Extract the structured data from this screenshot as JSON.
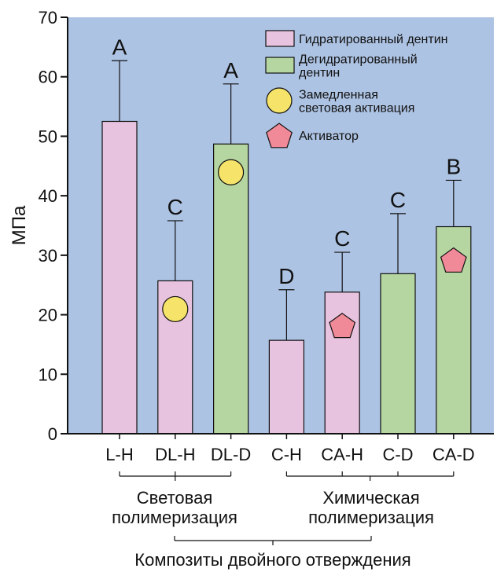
{
  "chart_data": {
    "type": "bar",
    "title": "",
    "ylabel": "МПа",
    "ylim": [
      0,
      70
    ],
    "yticks": [
      0,
      10,
      20,
      30,
      40,
      50,
      60,
      70
    ],
    "grid": false,
    "background_color": "#adc3e3",
    "categories": [
      "L-H",
      "DL-H",
      "DL-D",
      "C-H",
      "CA-H",
      "C-D",
      "CA-D"
    ],
    "values": [
      52.5,
      25.7,
      48.7,
      15.7,
      23.8,
      26.9,
      34.8
    ],
    "error_upper": [
      62.7,
      35.8,
      58.8,
      24.2,
      30.5,
      37.0,
      42.6
    ],
    "significance": [
      "A",
      "C",
      "A",
      "D",
      "C",
      "C",
      "B"
    ],
    "bar_kind": [
      "hydrated",
      "hydrated",
      "dehydrated",
      "hydrated",
      "hydrated",
      "dehydrated",
      "dehydrated"
    ],
    "markers": [
      "",
      "circle",
      "circle",
      "",
      "pentagon",
      "",
      "pentagon"
    ],
    "colors": {
      "hydrated": "#e8c3df",
      "dehydrated": "#b6d6a1",
      "circle": "#f6e36a",
      "pentagon": "#f08a98"
    },
    "legend": [
      {
        "kind": "hydrated",
        "lines": [
          "Гидратированный дентин"
        ]
      },
      {
        "kind": "dehydrated",
        "lines": [
          "Дегидратированный",
          "дентин"
        ]
      },
      {
        "kind": "circle",
        "lines": [
          "Замедленная",
          "световая активация"
        ]
      },
      {
        "kind": "pentagon",
        "lines": [
          "Активатор"
        ]
      }
    ],
    "legend_position": "top-right",
    "groups": {
      "light": [
        "Световая",
        "полимеризация"
      ],
      "chemical": [
        "Химическая",
        "полимеризация"
      ],
      "dual": "Композиты двойного отверждения"
    }
  }
}
